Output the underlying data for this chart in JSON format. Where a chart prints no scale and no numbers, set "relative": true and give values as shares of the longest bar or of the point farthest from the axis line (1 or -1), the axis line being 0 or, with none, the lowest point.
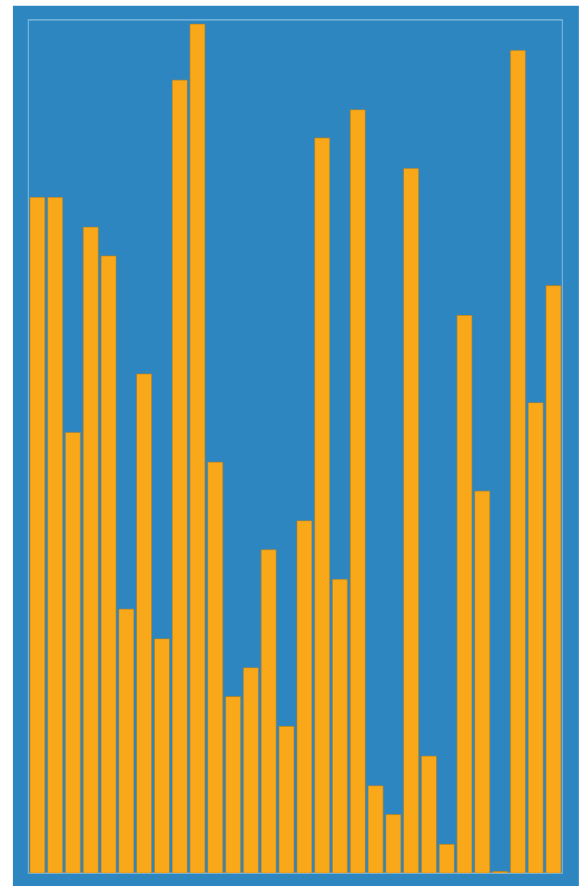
{
  "chart_data": {
    "type": "bar",
    "relative": true,
    "categories": [
      null,
      null,
      null,
      null,
      null,
      null,
      null,
      null,
      null,
      null,
      null,
      null,
      null,
      null,
      null,
      null,
      null,
      null,
      null,
      null,
      null,
      null,
      null,
      null,
      null,
      null,
      null,
      null,
      null,
      null
    ],
    "values": [
      0.796,
      0.796,
      0.519,
      0.761,
      0.727,
      0.311,
      0.588,
      0.276,
      0.934,
      1.0,
      0.484,
      0.208,
      0.242,
      0.381,
      0.173,
      0.415,
      0.866,
      0.346,
      0.899,
      0.103,
      0.069,
      0.83,
      0.138,
      0.034,
      0.657,
      0.45,
      0.002,
      0.969,
      0.554,
      0.692
    ],
    "color": "#f9a81a"
  }
}
